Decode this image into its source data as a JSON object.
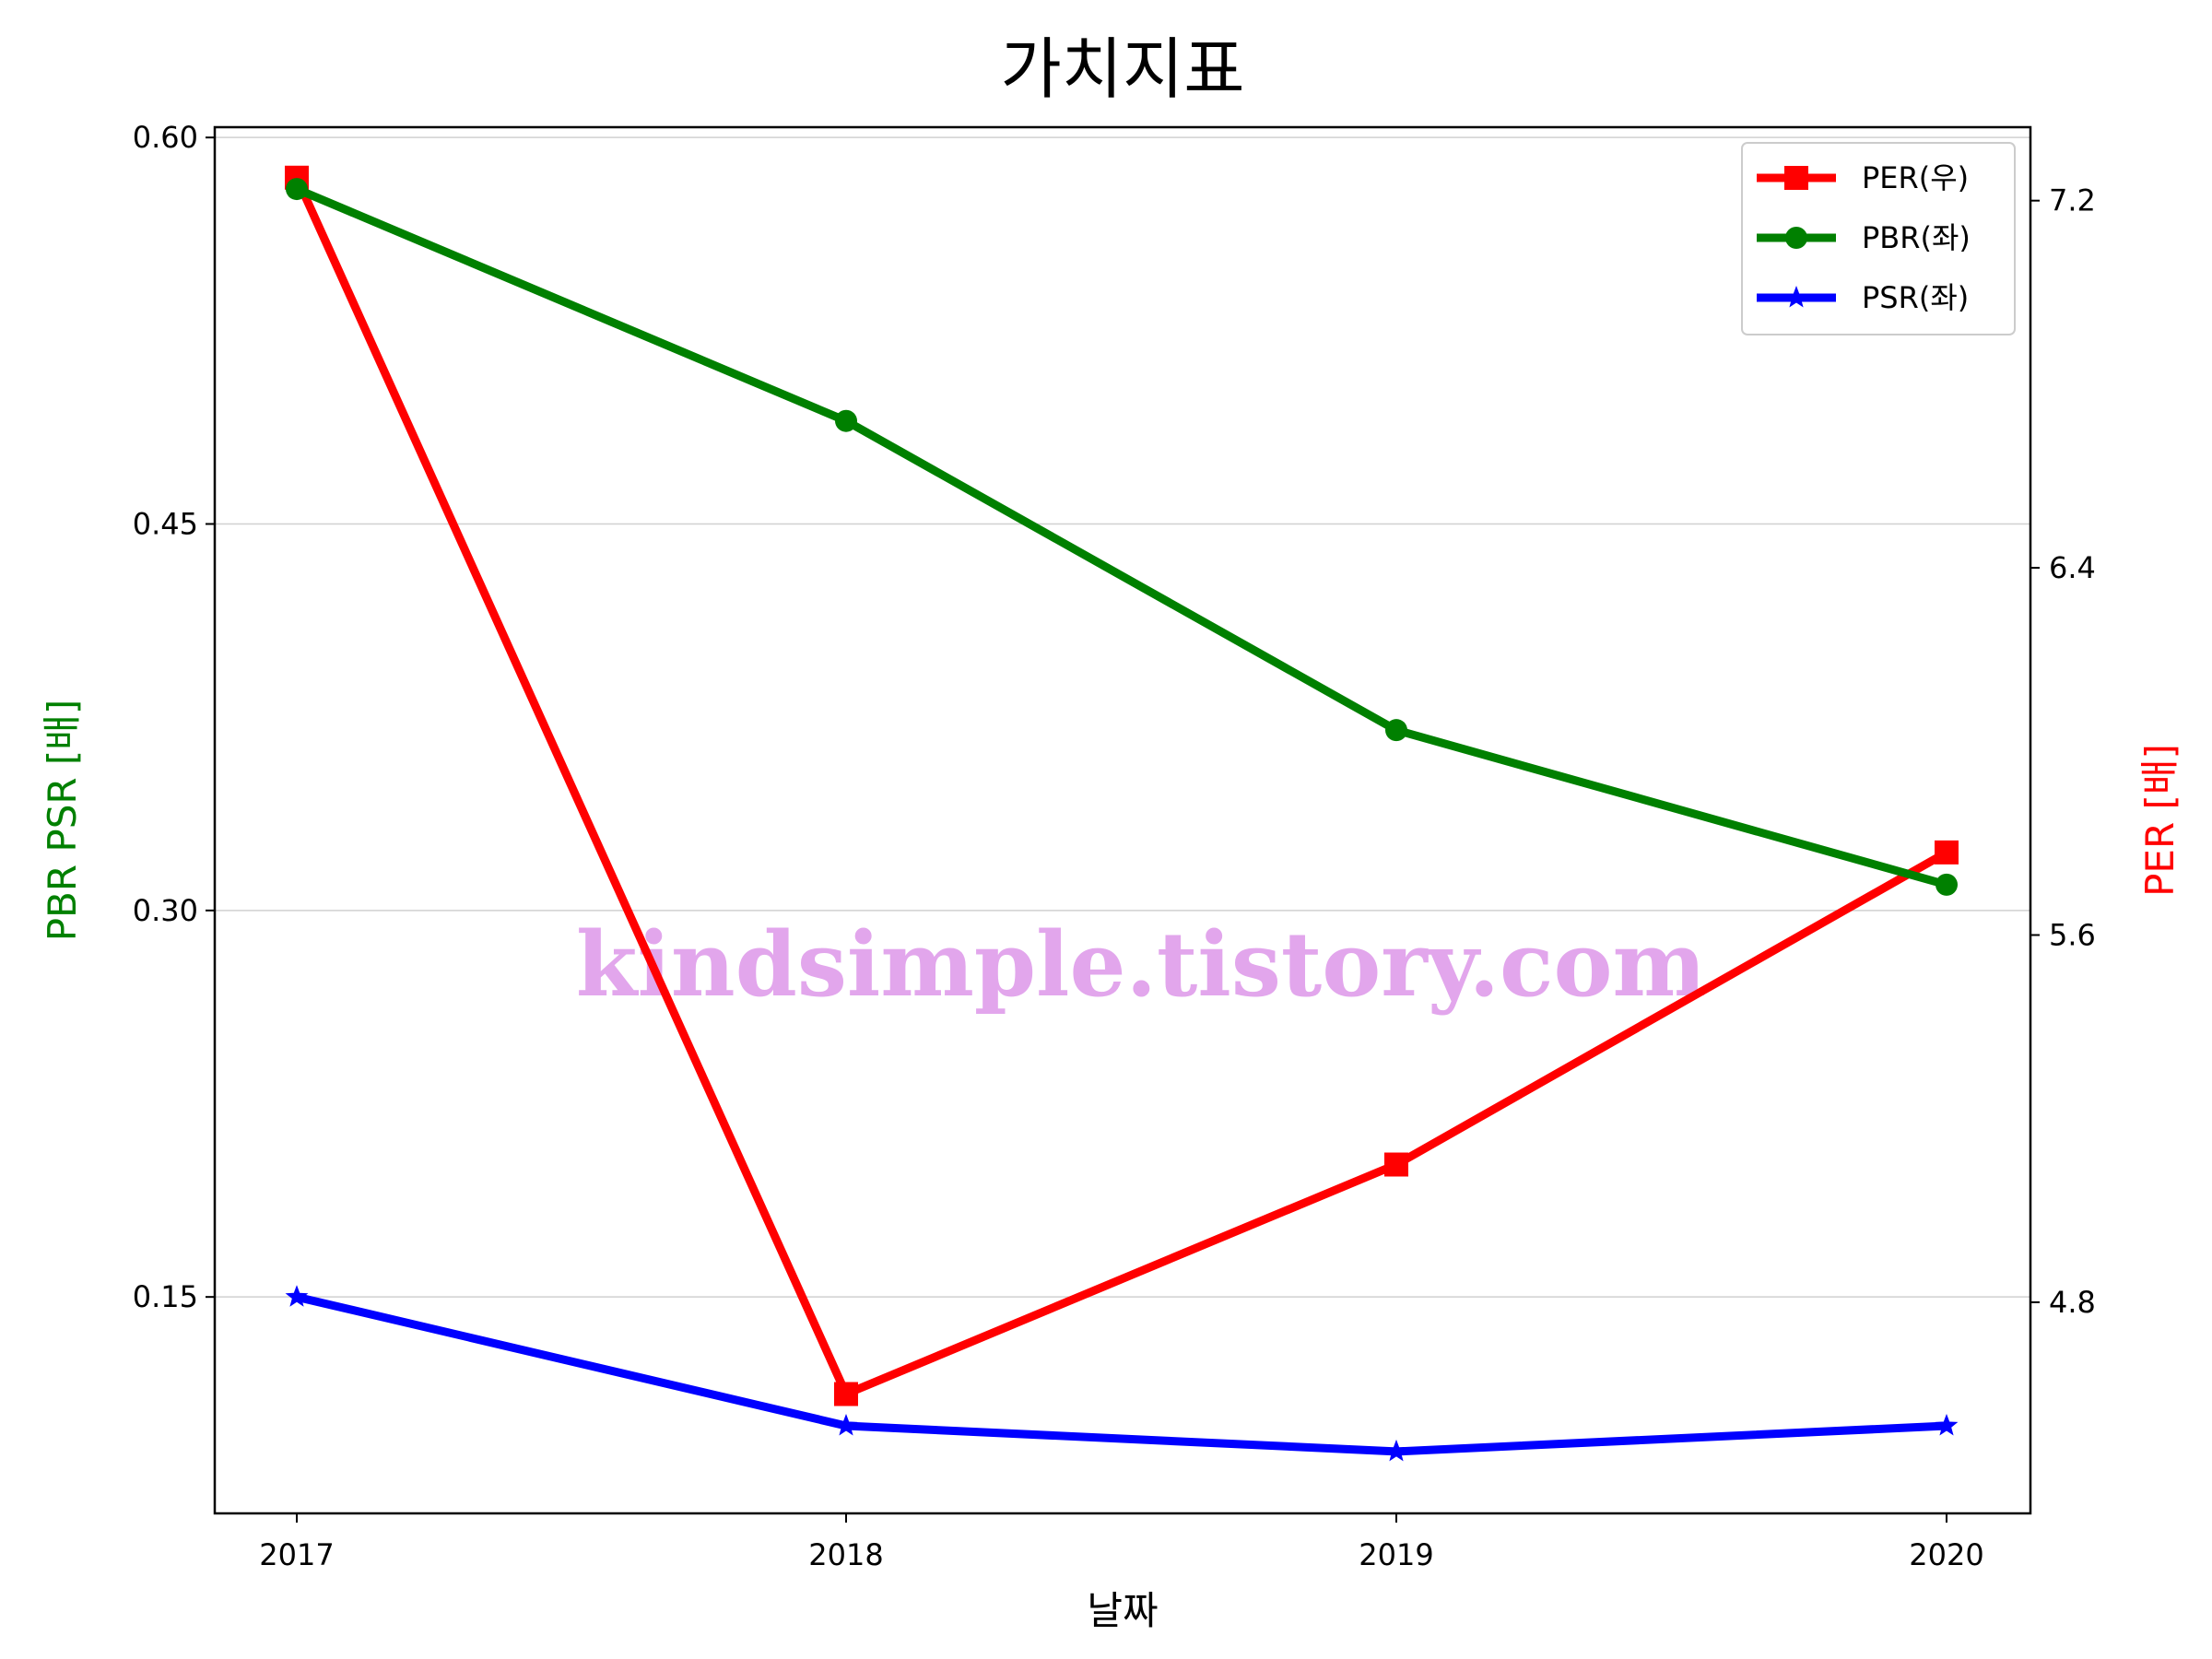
{
  "chart_data": {
    "type": "line",
    "title": "가치지표",
    "xlabel": "날짜",
    "ylabel_left": "PBR PSR [배]",
    "ylabel_right": "PER [배]",
    "categories": [
      "2017",
      "2018",
      "2019",
      "2020"
    ],
    "left_axis": {
      "ylim": [
        0.066,
        0.604
      ],
      "ticks": [
        "0.15",
        "0.30",
        "0.45",
        "0.60"
      ],
      "color": "#008000"
    },
    "right_axis": {
      "ylim": [
        4.34,
        7.36
      ],
      "ticks": [
        "4.8",
        "5.6",
        "6.4",
        "7.2"
      ],
      "color": "#ff0000"
    },
    "series": [
      {
        "name": "PER(우)",
        "axis": "right",
        "color": "#ff0000",
        "marker": "square",
        "values": [
          7.25,
          4.6,
          5.1,
          5.78
        ]
      },
      {
        "name": "PBR(좌)",
        "axis": "left",
        "color": "#008000",
        "marker": "circle",
        "values": [
          0.58,
          0.49,
          0.37,
          0.31
        ]
      },
      {
        "name": "PSR(좌)",
        "axis": "left",
        "color": "#0000ff",
        "marker": "star",
        "values": [
          0.15,
          0.1,
          0.09,
          0.1
        ]
      }
    ],
    "grid": "horizontal",
    "legend": "top-right"
  },
  "watermark": "kindsimple.tistory.com"
}
